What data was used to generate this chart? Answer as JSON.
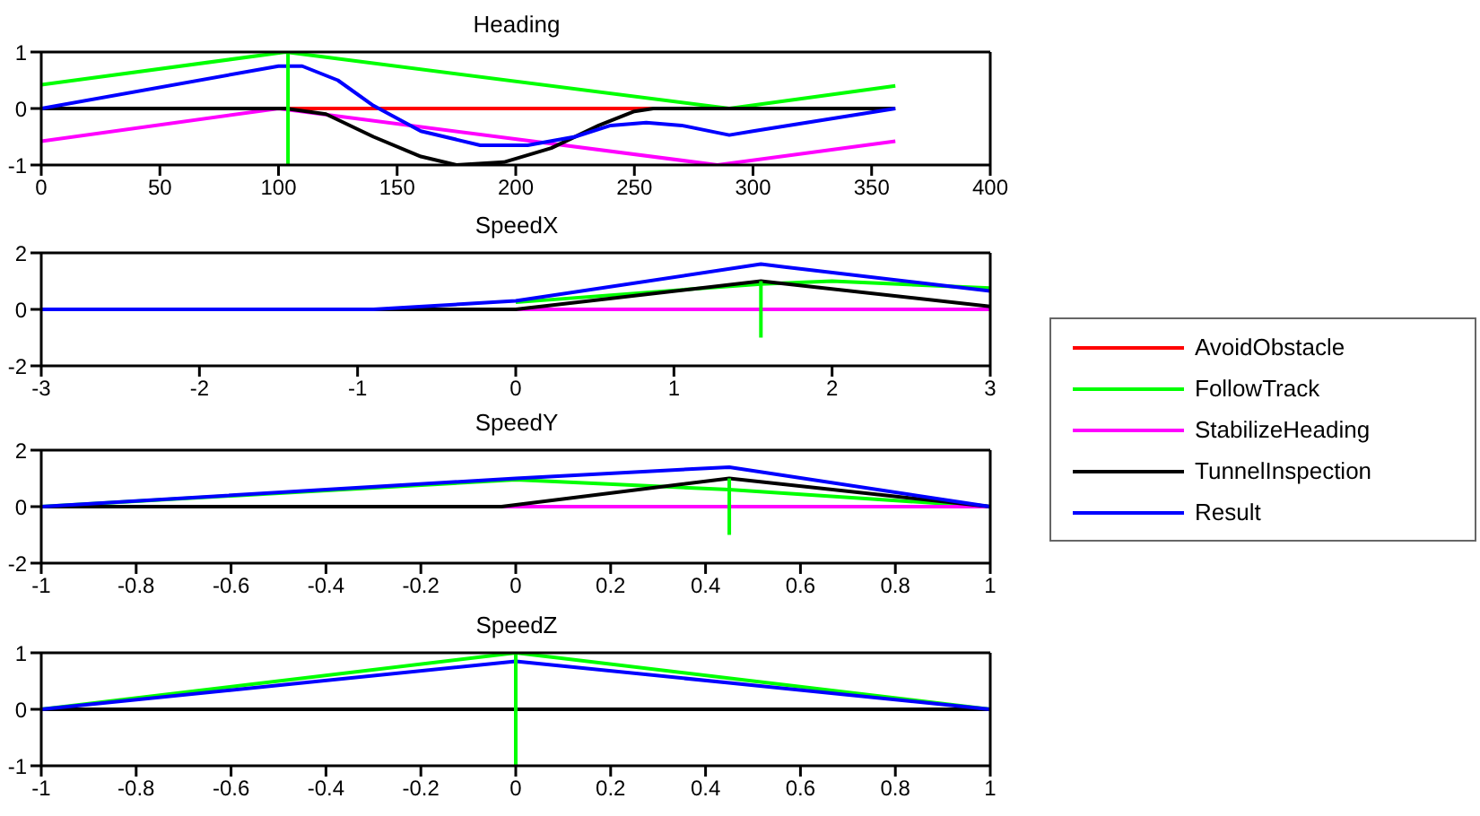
{
  "chart_data": [
    {
      "type": "line",
      "title": "Heading",
      "xlim": [
        0,
        400
      ],
      "xticks": [
        0,
        50,
        100,
        150,
        200,
        250,
        300,
        350,
        400
      ],
      "ylim": [
        -1,
        1
      ],
      "yticks": [
        -1,
        0,
        1
      ],
      "legend": "right",
      "series": [
        {
          "name": "AvoidObstacle",
          "color": "#ff0000",
          "x": [
            103,
            258
          ],
          "values": [
            0,
            0
          ]
        },
        {
          "name": "FollowTrack",
          "color": "#00ff00",
          "x": [
            0,
            103,
            290,
            360
          ],
          "values": [
            0.42,
            1,
            0,
            0.4
          ]
        },
        {
          "name": "StabilizeHeading",
          "color": "#ff00ff",
          "x": [
            0,
            100,
            285,
            360
          ],
          "values": [
            -0.58,
            0,
            -1,
            -0.58
          ]
        },
        {
          "name": "TunnelInspection",
          "color": "#000000",
          "x": [
            0,
            103,
            120,
            140,
            160,
            175,
            195,
            215,
            235,
            250,
            258,
            360
          ],
          "values": [
            0,
            0,
            -0.1,
            -0.5,
            -0.85,
            -1,
            -0.95,
            -0.7,
            -0.3,
            -0.05,
            0,
            0
          ]
        },
        {
          "name": "Result",
          "color": "#0000ff",
          "x": [
            0,
            100,
            110,
            125,
            140,
            160,
            185,
            205,
            225,
            240,
            255,
            270,
            290,
            300,
            360
          ],
          "values": [
            0,
            0.75,
            0.75,
            0.5,
            0.05,
            -0.4,
            -0.65,
            -0.65,
            -0.5,
            -0.3,
            -0.25,
            -0.3,
            -0.47,
            -0.4,
            0
          ]
        },
        {
          "color": "#00ff00",
          "x": [
            104,
            104
          ],
          "values": [
            -1,
            1
          ]
        }
      ]
    },
    {
      "type": "line",
      "title": "SpeedX",
      "xlim": [
        -3,
        3
      ],
      "xticks": [
        -3,
        -2,
        -1,
        0,
        1,
        2,
        3
      ],
      "ylim": [
        -2,
        2
      ],
      "yticks": [
        -2,
        0,
        2
      ],
      "series": [
        {
          "color": "#00ff00",
          "x": [
            0,
            1.55,
            2,
            3
          ],
          "values": [
            0.25,
            0.9,
            1.0,
            0.75
          ]
        },
        {
          "color": "#ff00ff",
          "x": [
            0,
            3
          ],
          "values": [
            0,
            0
          ]
        },
        {
          "color": "#000000",
          "x": [
            -3,
            0,
            1.55,
            3
          ],
          "values": [
            0,
            0,
            1.0,
            0.1
          ]
        },
        {
          "color": "#0000ff",
          "x": [
            -3,
            -0.9,
            0,
            1.55,
            1.7,
            3
          ],
          "values": [
            0,
            0,
            0.3,
            1.6,
            1.5,
            0.65
          ]
        },
        {
          "color": "#00ff00",
          "x": [
            1.55,
            1.55
          ],
          "values": [
            -1,
            1
          ]
        }
      ]
    },
    {
      "type": "line",
      "title": "SpeedY",
      "xlim": [
        -1,
        1
      ],
      "xticks": [
        -1,
        -0.8,
        -0.6,
        -0.4,
        -0.2,
        0,
        0.2,
        0.4,
        0.6,
        0.8,
        1
      ],
      "ylim": [
        -2,
        2
      ],
      "yticks": [
        -2,
        0,
        2
      ],
      "series": [
        {
          "color": "#00ff00",
          "x": [
            -1,
            0,
            0.45,
            1
          ],
          "values": [
            0,
            0.95,
            0.6,
            0
          ]
        },
        {
          "color": "#ff00ff",
          "x": [
            -0.03,
            1
          ],
          "values": [
            0,
            0
          ]
        },
        {
          "color": "#000000",
          "x": [
            -1,
            -0.03,
            0.45,
            1
          ],
          "values": [
            0,
            0,
            1.0,
            0
          ]
        },
        {
          "color": "#0000ff",
          "x": [
            -1,
            0,
            0.45,
            1
          ],
          "values": [
            0,
            1.0,
            1.4,
            0
          ]
        },
        {
          "color": "#00ff00",
          "x": [
            0.45,
            0.45
          ],
          "values": [
            -1,
            1
          ]
        }
      ]
    },
    {
      "type": "line",
      "title": "SpeedZ",
      "xlim": [
        -1,
        1
      ],
      "xticks": [
        -1,
        -0.8,
        -0.6,
        -0.4,
        -0.2,
        0,
        0.2,
        0.4,
        0.6,
        0.8,
        1
      ],
      "ylim": [
        -1,
        1
      ],
      "yticks": [
        -1,
        0,
        1
      ],
      "series": [
        {
          "color": "#00ff00",
          "x": [
            -1,
            0,
            1
          ],
          "values": [
            0,
            1,
            0
          ]
        },
        {
          "color": "#000000",
          "x": [
            -1,
            1
          ],
          "values": [
            0,
            0
          ]
        },
        {
          "color": "#0000ff",
          "x": [
            -1,
            0,
            1
          ],
          "values": [
            0,
            0.85,
            0
          ]
        },
        {
          "color": "#00ff00",
          "x": [
            0,
            0
          ],
          "values": [
            -1,
            1
          ]
        }
      ]
    }
  ]
}
